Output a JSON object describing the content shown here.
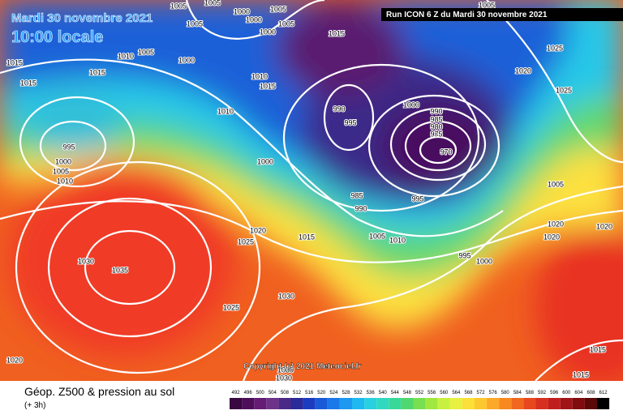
{
  "header": {
    "date": "Mardi 30 novembre 2021",
    "time": "10:00 locale",
    "run": "Run ICON 6 Z du Mardi 30 novembre 2021"
  },
  "copyright": "Copyright (c) 2021 Meteociel.fr",
  "footer": {
    "title": "Géop. Z500 & pression au sol",
    "step": "(+ 3h)"
  },
  "legend": {
    "levels": [
      492,
      496,
      500,
      504,
      508,
      512,
      516,
      520,
      524,
      528,
      532,
      536,
      540,
      544,
      548,
      552,
      556,
      560,
      564,
      568,
      572,
      576,
      580,
      584,
      588,
      592,
      596,
      600,
      604,
      608,
      612
    ],
    "colors": [
      "#3a0840",
      "#4e0f5a",
      "#641c74",
      "#6e3288",
      "#4a2a86",
      "#2a2a9a",
      "#1c3cc0",
      "#1a5ad8",
      "#1a78e8",
      "#1e98f0",
      "#20b8f0",
      "#28d0e0",
      "#30d8c0",
      "#38d898",
      "#50d870",
      "#78e050",
      "#a0e840",
      "#c8f040",
      "#e8f040",
      "#fae038",
      "#fcc830",
      "#fca828",
      "#f88820",
      "#f06820",
      "#e84820",
      "#d83020",
      "#c01e1e",
      "#a01418",
      "#800c10",
      "#5a0808",
      "#000000"
    ]
  },
  "isobar_labels": [
    1005,
    1005,
    1000,
    1005,
    1005,
    1000,
    1000,
    1005,
    1010,
    1005,
    1000,
    1015,
    1015,
    1015,
    1010,
    1015,
    1015,
    1010,
    1005,
    1025,
    1020,
    1025,
    990,
    995,
    1000,
    990,
    985,
    980,
    975,
    970,
    995,
    1000,
    1005,
    1010,
    1000,
    985,
    990,
    995,
    1005,
    1020,
    1020,
    1020,
    1020,
    1025,
    1015,
    1005,
    1010,
    995,
    1000,
    1030,
    1035,
    1025,
    1030,
    1020,
    1015,
    1015,
    1030,
    1030
  ]
}
